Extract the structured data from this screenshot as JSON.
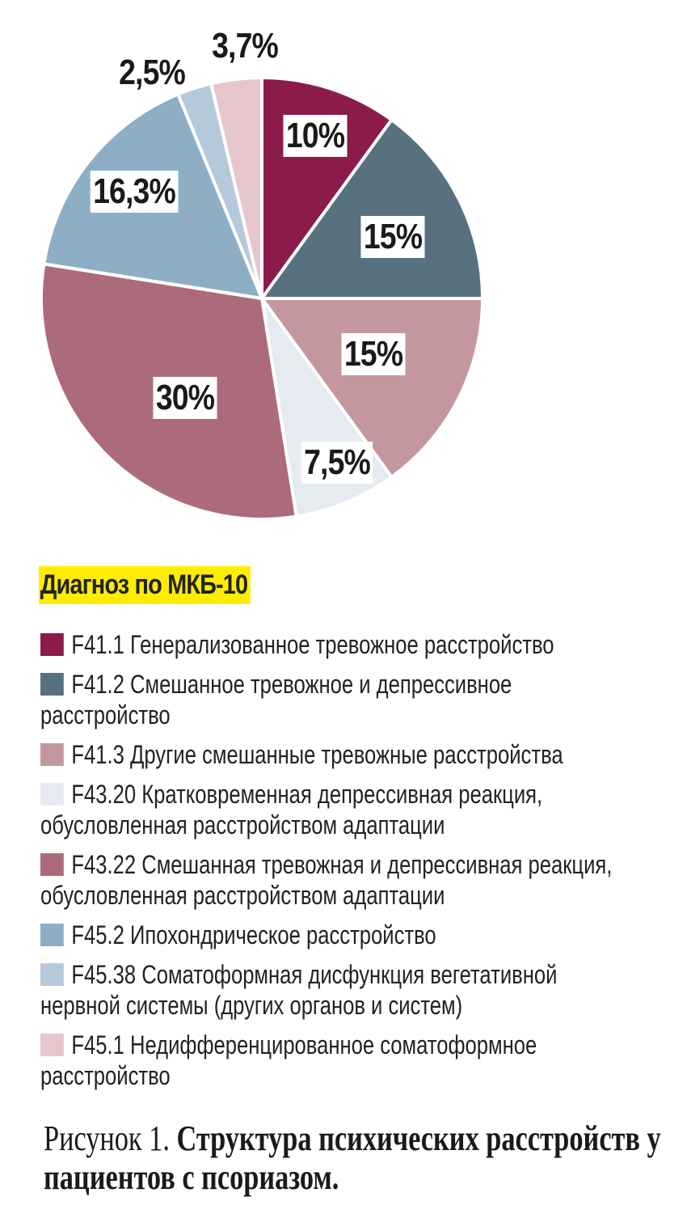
{
  "chart_data": {
    "type": "pie",
    "title": "",
    "start": "12 o'clock, clockwise",
    "slices": [
      {
        "code": "F41.1",
        "value": 10,
        "label": "10%",
        "color": "#8b1b4b"
      },
      {
        "code": "F41.2",
        "value": 15,
        "label": "15%",
        "color": "#57717e"
      },
      {
        "code": "F41.3",
        "value": 15,
        "label": "15%",
        "color": "#c4979e"
      },
      {
        "code": "F43.20",
        "value": 7.5,
        "label": "7,5%",
        "color": "#e6eaf1"
      },
      {
        "code": "F43.22",
        "value": 30,
        "label": "30%",
        "color": "#ac6b7b"
      },
      {
        "code": "F45.2",
        "value": 16.3,
        "label": "16,3%",
        "color": "#8eaec6"
      },
      {
        "code": "F45.38",
        "value": 2.5,
        "label": "2,5%",
        "color": "#b6c9da"
      },
      {
        "code": "F45.1",
        "value": 3.7,
        "label": "3,7%",
        "color": "#e6c6cd"
      }
    ],
    "legend_title": "Диагноз по МКБ-10",
    "legend": [
      "F41.1 Генерализованное тревожное расстройство",
      "F41.2 Смешанное тревожное и депрессивное расстройство",
      "F41.3 Другие смешанные тревожные расстройства",
      "F43.20 Кратковременная депрессивная реакция, обусловленная расстройством адаптации",
      "F43.22 Смешанная тревожная и депрессивная реакция, обусловленная расстройством адаптации",
      "F45.2 Ипохондрическое расстройство",
      "F45.38 Соматоформная дисфункция вегетативной нервной системы (других органов и систем)",
      "F45.1 Недифференцированное соматоформное расстройство"
    ],
    "legend_placement": "bottom"
  },
  "caption": {
    "prefix": "Рисунок 1. ",
    "title": "Структура психических расстройств у пациентов с псориазом."
  }
}
